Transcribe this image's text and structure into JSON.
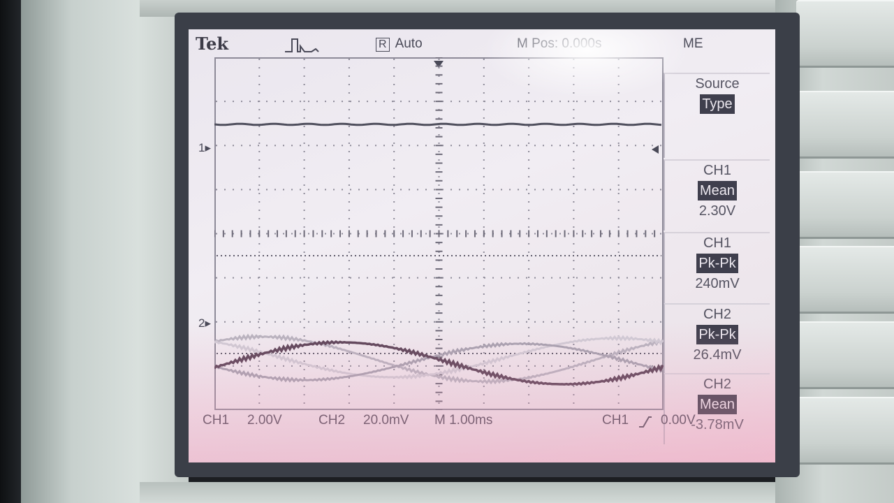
{
  "header": {
    "brand": "Tek",
    "trigger_status": "Auto",
    "trigger_state_badge": "R",
    "horizontal_position": "M Pos: 0.000s",
    "menu_title": "ME"
  },
  "channel_markers": {
    "ch1": "1",
    "ch2": "2"
  },
  "side_menu": {
    "items": [
      {
        "title": "Source",
        "label": "Type",
        "value": ""
      },
      {
        "title": "CH1",
        "label": "Mean",
        "value": "2.30V"
      },
      {
        "title": "CH1",
        "label": "Pk-Pk",
        "value": "240mV"
      },
      {
        "title": "CH2",
        "label": "Pk-Pk",
        "value": "26.4mV"
      },
      {
        "title": "CH2",
        "label": "Mean",
        "value": "-3.78mV"
      }
    ]
  },
  "footer": {
    "ch1_label": "CH1",
    "ch1_scale": "2.00V",
    "ch2_label": "CH2",
    "ch2_scale": "20.0mV",
    "timebase": "M 1.00ms",
    "trigger_source": "CH1",
    "trigger_level": "0.00V"
  },
  "colors": {
    "trace_ch1": "#4e4e5c",
    "trace_ch2": "#5b4458",
    "trace_persist": "#b7b3bf",
    "graticule": "#8d8a98",
    "screen_bg": "#ece8ef"
  }
}
